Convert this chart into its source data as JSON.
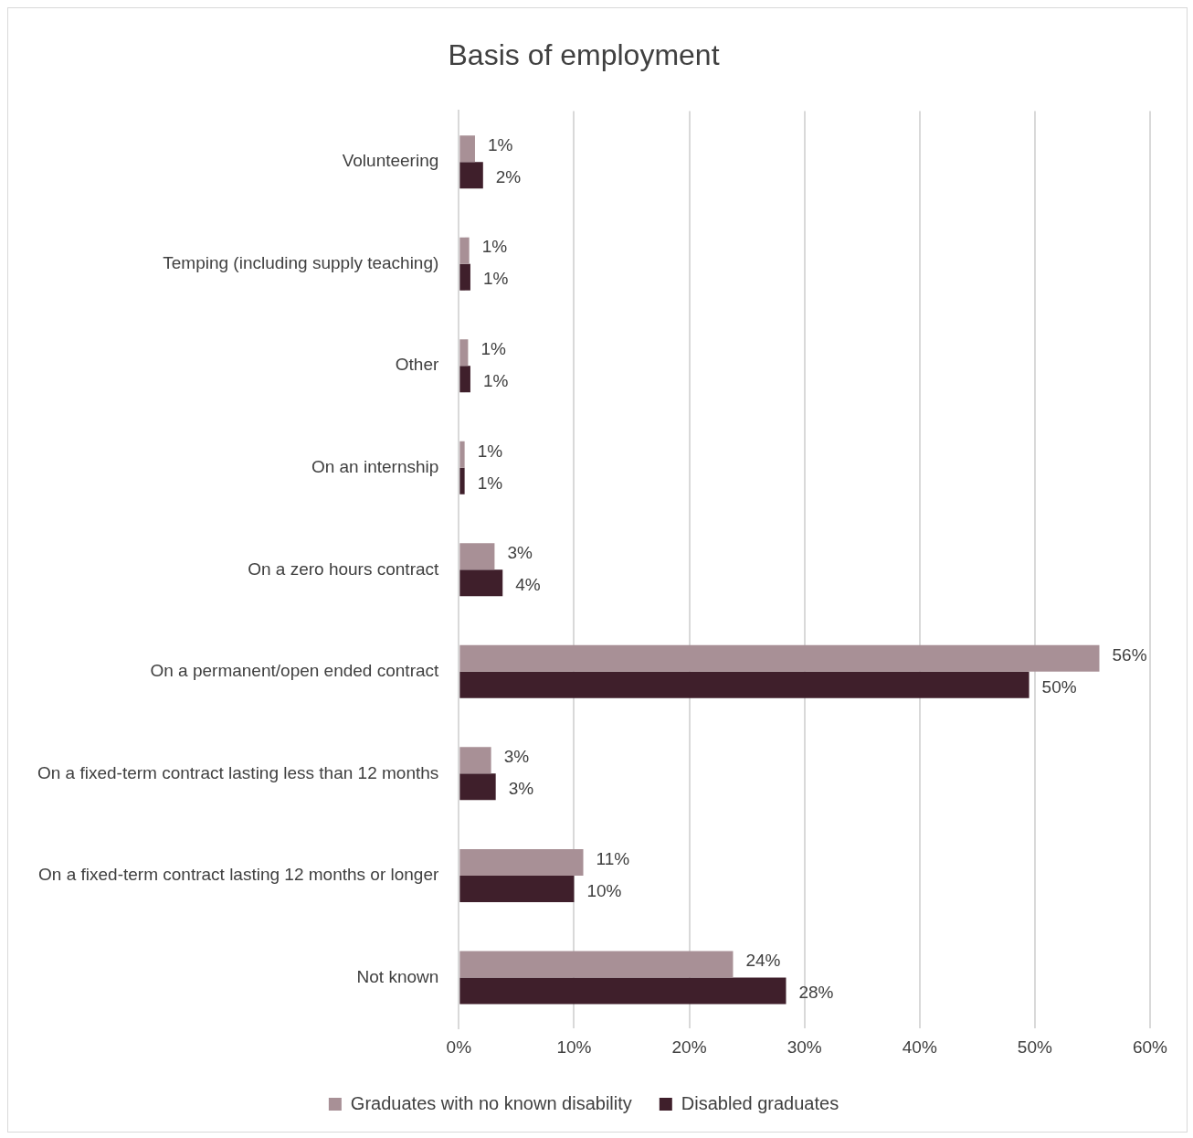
{
  "chart_data": {
    "type": "bar",
    "orientation": "horizontal",
    "title": "Basis of employment",
    "categories": [
      "Volunteering",
      "Temping (including supply teaching)",
      "Other",
      "On an internship",
      "On a zero hours contract",
      "On a permanent/open ended contract",
      "On a fixed-term contract lasting less than 12 months",
      "On a fixed-term contract lasting 12 months or longer",
      "Not known"
    ],
    "series": [
      {
        "name": "Graduates with no known disability",
        "color": "#a89096",
        "values": [
          1.4,
          0.9,
          0.8,
          0.5,
          3.1,
          55.6,
          2.8,
          10.8,
          23.8
        ],
        "value_labels": [
          "1%",
          "1%",
          "1%",
          "1%",
          "3%",
          "56%",
          "3%",
          "11%",
          "24%"
        ]
      },
      {
        "name": "Disabled graduates",
        "color": "#3f1f2b",
        "values": [
          2.1,
          1.0,
          1.0,
          0.5,
          3.8,
          49.5,
          3.2,
          10.0,
          28.4
        ],
        "value_labels": [
          "2%",
          "1%",
          "1%",
          "1%",
          "4%",
          "50%",
          "3%",
          "10%",
          "28%"
        ]
      }
    ],
    "xlim": [
      0,
      60
    ],
    "xticks": [
      {
        "value": 0,
        "label": "0%"
      },
      {
        "value": 10,
        "label": "10%"
      },
      {
        "value": 20,
        "label": "20%"
      },
      {
        "value": 30,
        "label": "30%"
      },
      {
        "value": 40,
        "label": "40%"
      },
      {
        "value": 50,
        "label": "50%"
      },
      {
        "value": 60,
        "label": "60%"
      }
    ],
    "grid": "x",
    "legend": "bottom"
  }
}
